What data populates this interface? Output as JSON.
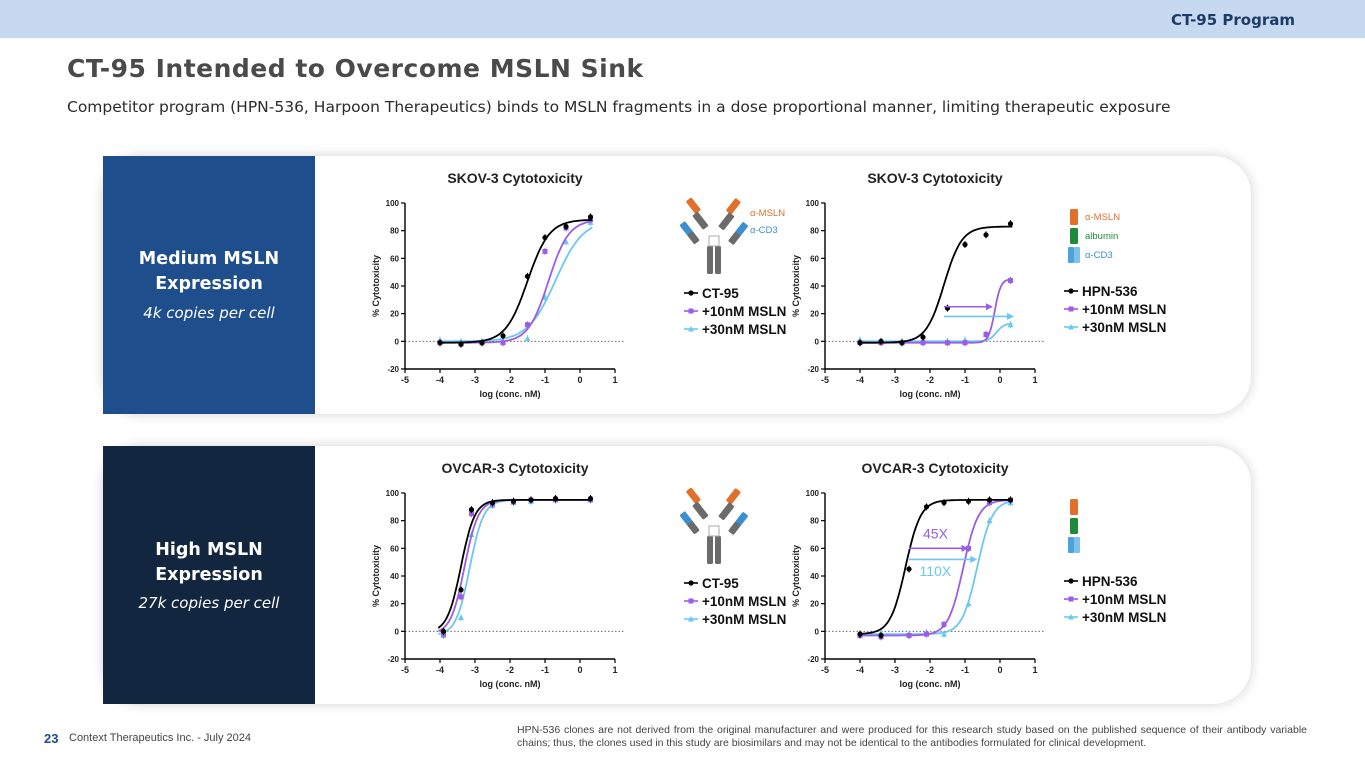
{
  "header": {
    "program_tag": "CT-95 Program"
  },
  "page_title": "CT-95 Intended to Overcome MSLN Sink",
  "subtitle": "Competitor program (HPN-536, Harpoon Therapeutics) binds to MSLN fragments in a dose proportional manner, limiting therapeutic exposure",
  "panels": [
    {
      "label": "Medium MSLN Expression",
      "label_lines": [
        "Medium MSLN",
        "Expression"
      ],
      "sublabel": "4k copies per cell"
    },
    {
      "label": "High MSLN Expression",
      "label_lines": [
        "High MSLN",
        "Expression"
      ],
      "sublabel": "27k copies per cell"
    }
  ],
  "colors": {
    "black": "#000000",
    "purple": "#9b5de5",
    "cyan": "#6cc8f0",
    "orange": "#e0702a",
    "green": "#1e8a3c",
    "blue": "#3a8fd0",
    "gray": "#6b6b6b",
    "arrow_purple": "#9b5de5",
    "arrow_cyan": "#6cc8f0"
  },
  "antibody_labels": {
    "ct95": [
      "α-MSLN",
      "α-CD3"
    ],
    "hpn": [
      "α-MSLN",
      "albumin",
      "α-CD3"
    ]
  },
  "chart_data": [
    {
      "type": "line",
      "title": "SKOV-3 Cytotoxicity",
      "xlabel": "log (conc. nM)",
      "ylabel": "% Cytotoxicity",
      "xlim": [
        -5,
        1
      ],
      "ylim": [
        -20,
        100
      ],
      "xticks": [
        "-5",
        "-4",
        "-3",
        "-2",
        "-1",
        "0",
        "1"
      ],
      "yticks": [
        "-20",
        "0",
        "20",
        "40",
        "60",
        "80",
        "100"
      ],
      "antibody": "ct95",
      "series": [
        {
          "name": "CT-95",
          "color": "#000000",
          "marker": "circle",
          "bottom": -1,
          "top": 88,
          "ec50": -1.5,
          "hill": 1.4,
          "x": [
            -4,
            -3.4,
            -2.8,
            -2.2,
            -1.5,
            -1.0,
            -0.4,
            0.3
          ],
          "y": [
            -1,
            -2,
            -1,
            4,
            47,
            75,
            83,
            90
          ]
        },
        {
          "name": "+10nM MSLN",
          "color": "#9b5de5",
          "marker": "square",
          "bottom": -1,
          "top": 88,
          "ec50": -0.9,
          "hill": 1.5,
          "x": [
            -4,
            -3.4,
            -2.8,
            -2.2,
            -1.5,
            -1.0,
            -0.4,
            0.3
          ],
          "y": [
            -1,
            -2,
            -1,
            -1,
            12,
            65,
            82,
            88
          ]
        },
        {
          "name": "+30nM MSLN",
          "color": "#6cc8f0",
          "marker": "triangle",
          "bottom": 0,
          "top": 88,
          "ec50": -0.7,
          "hill": 1.1,
          "x": [
            -4,
            -3.4,
            -2.8,
            -2.2,
            -1.5,
            -1.0,
            -0.4,
            0.3
          ],
          "y": [
            1,
            0,
            0,
            0,
            2,
            32,
            72,
            86
          ]
        }
      ],
      "arrows": [],
      "annotations": []
    },
    {
      "type": "line",
      "title": "SKOV-3 Cytotoxicity",
      "xlabel": "log (conc. nM)",
      "ylabel": "% Cytotoxicity",
      "xlim": [
        -5,
        1
      ],
      "ylim": [
        -20,
        100
      ],
      "xticks": [
        "-5",
        "-4",
        "-3",
        "-2",
        "-1",
        "0",
        "1"
      ],
      "yticks": [
        "-20",
        "0",
        "20",
        "40",
        "60",
        "80",
        "100"
      ],
      "antibody": "hpn",
      "series": [
        {
          "name": "HPN-536",
          "color": "#000000",
          "marker": "circle",
          "bottom": -1,
          "top": 83,
          "ec50": -1.6,
          "hill": 1.7,
          "x": [
            -4,
            -3.4,
            -2.8,
            -2.2,
            -1.5,
            -1.0,
            -0.4,
            0.3
          ],
          "y": [
            -1,
            0,
            -1,
            3,
            24,
            70,
            77,
            85
          ]
        },
        {
          "name": "+10nM MSLN",
          "color": "#9b5de5",
          "marker": "square",
          "bottom": -1,
          "top": 45,
          "ec50": -0.15,
          "hill": 5,
          "x": [
            -4,
            -3.4,
            -2.8,
            -2.2,
            -1.5,
            -1.0,
            -0.4,
            0.3
          ],
          "y": [
            -1,
            -1,
            -1,
            -1,
            -1,
            -1,
            5,
            44
          ]
        },
        {
          "name": "+30nM MSLN",
          "color": "#6cc8f0",
          "marker": "triangle",
          "bottom": 0,
          "top": 13,
          "ec50": -0.1,
          "hill": 4,
          "x": [
            -4,
            -3.4,
            -2.8,
            -2.2,
            -1.5,
            -1.0,
            -0.4,
            0.3
          ],
          "y": [
            1,
            0,
            0,
            0,
            0,
            1,
            5,
            12
          ]
        }
      ],
      "arrows": [
        {
          "color": "#9b5de5",
          "y": 25,
          "x_from": -1.6,
          "x_to": -0.2
        },
        {
          "color": "#6cc8f0",
          "y": 18,
          "x_from": -1.6,
          "x_to": 0.4
        }
      ],
      "annotations": []
    },
    {
      "type": "line",
      "title": "OVCAR-3 Cytotoxicity",
      "xlabel": "log (conc. nM)",
      "ylabel": "% Cytotoxicity",
      "xlim": [
        -5,
        1
      ],
      "ylim": [
        -20,
        100
      ],
      "xticks": [
        "-5",
        "-4",
        "-3",
        "-2",
        "-1",
        "0",
        "1"
      ],
      "yticks": [
        "-20",
        "0",
        "20",
        "40",
        "60",
        "80",
        "100"
      ],
      "antibody": "ct95",
      "series": [
        {
          "name": "CT-95",
          "color": "#000000",
          "marker": "circle",
          "bottom": -1,
          "top": 95,
          "ec50": -3.4,
          "hill": 2.2,
          "x": [
            -3.9,
            -3.4,
            -3.1,
            -2.5,
            -1.9,
            -1.4,
            -0.7,
            0.3
          ],
          "y": [
            0,
            30,
            88,
            93,
            94,
            95,
            96,
            96
          ]
        },
        {
          "name": "+10nM MSLN",
          "color": "#9b5de5",
          "marker": "square",
          "bottom": -2,
          "top": 95,
          "ec50": -3.3,
          "hill": 2.2,
          "x": [
            -3.9,
            -3.4,
            -3.1,
            -2.5,
            -1.9,
            -1.4,
            -0.7,
            0.3
          ],
          "y": [
            -2,
            25,
            85,
            92,
            94,
            95,
            95,
            95
          ]
        },
        {
          "name": "+30nM MSLN",
          "color": "#6cc8f0",
          "marker": "triangle",
          "bottom": -3,
          "top": 95,
          "ec50": -3.15,
          "hill": 2.2,
          "x": [
            -3.9,
            -3.4,
            -3.1,
            -2.5,
            -1.9,
            -1.4,
            -0.7,
            0.3
          ],
          "y": [
            -3,
            10,
            70,
            91,
            93,
            94,
            95,
            95
          ]
        }
      ],
      "arrows": [],
      "annotations": []
    },
    {
      "type": "line",
      "title": "OVCAR-3 Cytotoxicity",
      "xlabel": "log (conc. nM)",
      "ylabel": "% Cytotoxicity",
      "xlim": [
        -5,
        1
      ],
      "ylim": [
        -20,
        100
      ],
      "xticks": [
        "-5",
        "-4",
        "-3",
        "-2",
        "-1",
        "0",
        "1"
      ],
      "yticks": [
        "-20",
        "0",
        "20",
        "40",
        "60",
        "80",
        "100"
      ],
      "antibody": "hpn",
      "series": [
        {
          "name": "HPN-536",
          "color": "#000000",
          "marker": "circle",
          "bottom": -2,
          "top": 95,
          "ec50": -2.7,
          "hill": 2.0,
          "x": [
            -4,
            -3.4,
            -2.6,
            -2.1,
            -1.6,
            -0.9,
            -0.3,
            0.3
          ],
          "y": [
            -2,
            -3,
            45,
            90,
            93,
            94,
            95,
            95
          ]
        },
        {
          "name": "+10nM MSLN",
          "color": "#9b5de5",
          "marker": "square",
          "bottom": -3,
          "top": 95,
          "ec50": -1.05,
          "hill": 2.0,
          "x": [
            -4,
            -3.4,
            -2.6,
            -2.1,
            -1.6,
            -0.9,
            -0.3,
            0.3
          ],
          "y": [
            -3,
            -4,
            -3,
            -2,
            5,
            60,
            93,
            95
          ]
        },
        {
          "name": "+30nM MSLN",
          "color": "#6cc8f0",
          "marker": "triangle",
          "bottom": -2,
          "top": 95,
          "ec50": -0.65,
          "hill": 2.0,
          "x": [
            -4,
            -3.4,
            -2.6,
            -2.1,
            -1.6,
            -0.9,
            -0.3,
            0.3
          ],
          "y": [
            -2,
            -1,
            -2,
            -1,
            -2,
            20,
            80,
            93
          ]
        }
      ],
      "arrows": [
        {
          "color": "#9b5de5",
          "y": 60,
          "x_from": -2.6,
          "x_to": -0.9
        },
        {
          "color": "#6cc8f0",
          "y": 52,
          "x_from": -2.6,
          "x_to": -0.65
        }
      ],
      "annotations": [
        {
          "text": "45X",
          "color": "#9b5de5",
          "x": -2.2,
          "y": 67
        },
        {
          "text": "110X",
          "color": "#6cc8f0",
          "x": -2.3,
          "y": 40
        }
      ]
    }
  ],
  "footer": {
    "page_number": "23",
    "company": "Context Therapeutics Inc. -  July 2024",
    "footnote": "HPN-536 clones are not derived from the original manufacturer and were produced for this research study based on the published sequence of their antibody variable chains; thus, the clones used in this study are biosimilars and may not be identical to the antibodies formulated for clinical development."
  }
}
